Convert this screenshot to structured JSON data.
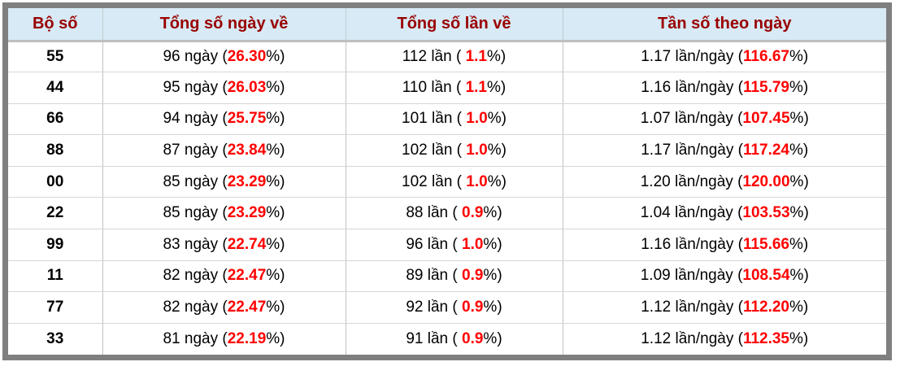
{
  "colors": {
    "header_bg": "#d7eaf5",
    "header_text": "#990000",
    "value_highlight": "#ff0000",
    "frame_border": "#7f7f7f"
  },
  "table": {
    "columns": [
      {
        "label": "Bộ số"
      },
      {
        "label": "Tổng số ngày về"
      },
      {
        "label": "Tổng số lần về"
      },
      {
        "label": "Tần số theo ngày"
      }
    ],
    "rows": [
      {
        "pair": "55",
        "days_prefix": "96 ngày (",
        "days_value": "26.30",
        "days_suffix": "%)",
        "times_prefix": "112 lần ( ",
        "times_value": "1.1",
        "times_suffix": "%)",
        "freq_prefix": "1.17 lần/ngày (",
        "freq_value": "116.67",
        "freq_suffix": "%)"
      },
      {
        "pair": "44",
        "days_prefix": "95 ngày (",
        "days_value": "26.03",
        "days_suffix": "%)",
        "times_prefix": "110 lần ( ",
        "times_value": "1.1",
        "times_suffix": "%)",
        "freq_prefix": "1.16 lần/ngày (",
        "freq_value": "115.79",
        "freq_suffix": "%)"
      },
      {
        "pair": "66",
        "days_prefix": "94 ngày (",
        "days_value": "25.75",
        "days_suffix": "%)",
        "times_prefix": "101 lần ( ",
        "times_value": "1.0",
        "times_suffix": "%)",
        "freq_prefix": "1.07 lần/ngày (",
        "freq_value": "107.45",
        "freq_suffix": "%)"
      },
      {
        "pair": "88",
        "days_prefix": "87 ngày (",
        "days_value": "23.84",
        "days_suffix": "%)",
        "times_prefix": "102 lần ( ",
        "times_value": "1.0",
        "times_suffix": "%)",
        "freq_prefix": "1.17 lần/ngày (",
        "freq_value": "117.24",
        "freq_suffix": "%)"
      },
      {
        "pair": "00",
        "days_prefix": "85 ngày (",
        "days_value": "23.29",
        "days_suffix": "%)",
        "times_prefix": "102 lần ( ",
        "times_value": "1.0",
        "times_suffix": "%)",
        "freq_prefix": "1.20 lần/ngày (",
        "freq_value": "120.00",
        "freq_suffix": "%)"
      },
      {
        "pair": "22",
        "days_prefix": "85 ngày (",
        "days_value": "23.29",
        "days_suffix": "%)",
        "times_prefix": "88 lần ( ",
        "times_value": "0.9",
        "times_suffix": "%)",
        "freq_prefix": "1.04 lần/ngày (",
        "freq_value": "103.53",
        "freq_suffix": "%)"
      },
      {
        "pair": "99",
        "days_prefix": "83 ngày (",
        "days_value": "22.74",
        "days_suffix": "%)",
        "times_prefix": "96 lần ( ",
        "times_value": "1.0",
        "times_suffix": "%)",
        "freq_prefix": "1.16 lần/ngày (",
        "freq_value": "115.66",
        "freq_suffix": "%)"
      },
      {
        "pair": "11",
        "days_prefix": "82 ngày (",
        "days_value": "22.47",
        "days_suffix": "%)",
        "times_prefix": "89 lần ( ",
        "times_value": "0.9",
        "times_suffix": "%)",
        "freq_prefix": "1.09 lần/ngày (",
        "freq_value": "108.54",
        "freq_suffix": "%)"
      },
      {
        "pair": "77",
        "days_prefix": "82 ngày (",
        "days_value": "22.47",
        "days_suffix": "%)",
        "times_prefix": "92 lần ( ",
        "times_value": "0.9",
        "times_suffix": "%)",
        "freq_prefix": "1.12 lần/ngày (",
        "freq_value": "112.20",
        "freq_suffix": "%)"
      },
      {
        "pair": "33",
        "days_prefix": "81 ngày (",
        "days_value": "22.19",
        "days_suffix": "%)",
        "times_prefix": "91 lần ( ",
        "times_value": "0.9",
        "times_suffix": "%)",
        "freq_prefix": "1.12 lần/ngày (",
        "freq_value": "112.35",
        "freq_suffix": "%)"
      }
    ]
  }
}
